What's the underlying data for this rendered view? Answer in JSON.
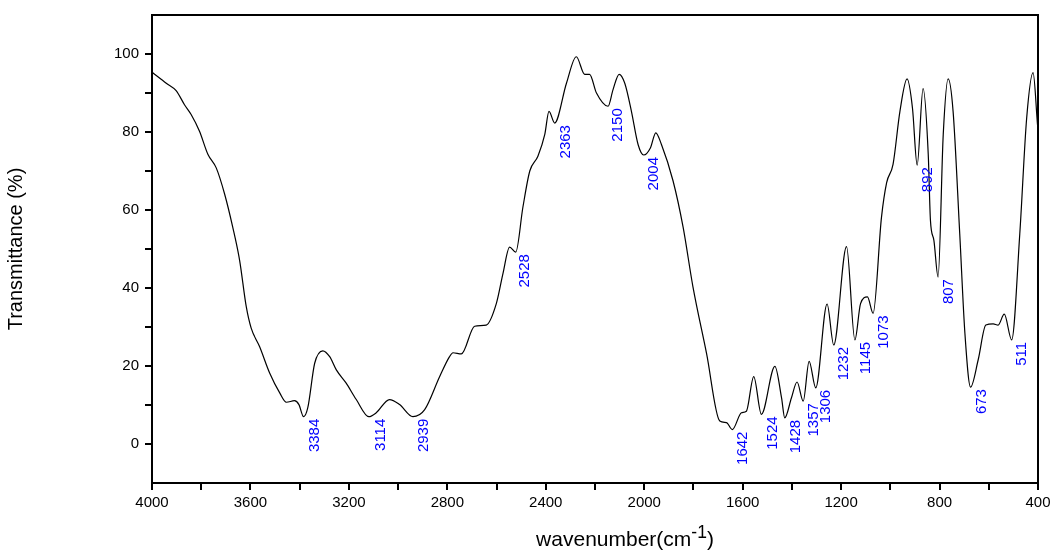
{
  "chart_data": {
    "type": "line",
    "xlabel": "wavenumber(cm$^{-1}$)",
    "ylabel": "Transmittance (%)",
    "x": [
      3997,
      3942,
      3902,
      3868,
      3841,
      3807,
      3773,
      3739,
      3705,
      3672,
      3644,
      3617,
      3597,
      3563,
      3522,
      3481,
      3454,
      3421,
      3403,
      3384,
      3367,
      3339,
      3306,
      3278,
      3251,
      3211,
      3170,
      3119,
      3089,
      3035,
      2994,
      2940,
      2892,
      2831,
      2791,
      2777,
      2743,
      2689,
      2642,
      2601,
      2574,
      2547,
      2522,
      2493,
      2465,
      2432,
      2404,
      2387,
      2364,
      2316,
      2276,
      2242,
      2222,
      2194,
      2147,
      2127,
      2102,
      2079,
      2052,
      2025,
      2002,
      1975,
      1953,
      1930,
      1883,
      1842,
      1802,
      1747,
      1693,
      1666,
      1642,
      1605,
      1585,
      1555,
      1524,
      1469,
      1442,
      1429,
      1402,
      1379,
      1354,
      1330,
      1303,
      1257,
      1230,
      1178,
      1144,
      1121,
      1093,
      1070,
      1036,
      1015,
      989,
      961,
      932,
      910,
      891,
      867,
      846,
      837,
      823,
      806,
      785,
      765,
      745,
      718,
      697,
      674,
      643,
      612,
      582,
      562,
      537,
      507,
      474,
      446,
      420,
      402
    ],
    "series": [
      {
        "color": "#000000",
        "values": [
          95.2,
          92.5,
          90.6,
          87.0,
          84.5,
          80.2,
          74.3,
          70.8,
          64.1,
          55.6,
          47.1,
          35.2,
          29.7,
          25.0,
          18.2,
          13.1,
          10.7,
          11.1,
          10.1,
          7.0,
          9.3,
          20.7,
          23.9,
          22.4,
          19.0,
          15.6,
          11.4,
          7.0,
          8.0,
          11.4,
          10.1,
          7.0,
          8.8,
          17.3,
          22.4,
          23.4,
          23.1,
          30.2,
          30.5,
          36.0,
          43.7,
          50.5,
          49.2,
          60.7,
          70.0,
          73.8,
          79.4,
          85.3,
          82.3,
          92.5,
          99.3,
          94.8,
          94.8,
          90.0,
          86.6,
          90.8,
          94.8,
          92.5,
          85.3,
          76.8,
          74.1,
          75.9,
          79.8,
          76.8,
          67.5,
          55.6,
          40.3,
          23.3,
          5.9,
          5.5,
          3.7,
          8.0,
          8.4,
          17.3,
          7.6,
          19.9,
          11.8,
          6.7,
          11.8,
          15.9,
          11.0,
          21.2,
          14.4,
          35.9,
          25.4,
          50.6,
          26.7,
          36.0,
          37.7,
          33.5,
          58.1,
          67.0,
          71.7,
          85.3,
          93.6,
          86.1,
          71.5,
          91.1,
          74.3,
          57.3,
          52.2,
          42.8,
          79.4,
          93.6,
          85.3,
          53.9,
          28.4,
          14.6,
          21.6,
          30.5,
          30.8,
          30.5,
          33.3,
          26.7,
          53.9,
          83.6,
          95.2,
          81.9
        ]
      }
    ],
    "xlim": [
      4000,
      400
    ],
    "xticks": [
      4000,
      {
        "value": 3800,
        "label": null
      },
      3600,
      {
        "value": 3400,
        "label": null
      },
      3200,
      {
        "value": 3000,
        "label": null
      },
      2800,
      {
        "value": 2600,
        "label": null
      },
      2400,
      {
        "value": 2200,
        "label": null
      },
      2000,
      {
        "value": 1800,
        "label": null
      },
      1600,
      {
        "value": 1400,
        "label": null
      },
      1200,
      {
        "value": 1000,
        "label": null
      },
      800,
      {
        "value": 600,
        "label": null
      },
      400
    ],
    "ylim": [
      -10,
      110
    ],
    "yticks": [
      0,
      {
        "value": 10,
        "label": null
      },
      20,
      {
        "value": 30,
        "label": null
      },
      40,
      {
        "value": 50,
        "label": null
      },
      60,
      {
        "value": 70,
        "label": null
      },
      80,
      {
        "value": 90,
        "label": null
      },
      100
    ],
    "grid": false,
    "marker": "none",
    "line_style": "solid",
    "annotations": [
      {
        "text": "3384",
        "x": 3384,
        "y": 7.0
      },
      {
        "text": "3114",
        "x": 3114,
        "y": 7.0
      },
      {
        "text": "2939",
        "x": 2939,
        "y": 7.0
      },
      {
        "text": "2528",
        "x": 2528,
        "y": 49.2
      },
      {
        "text": "2363",
        "x": 2363,
        "y": 82.3
      },
      {
        "text": "2150",
        "x": 2150,
        "y": 86.6
      },
      {
        "text": "2004",
        "x": 2004,
        "y": 74.1
      },
      {
        "text": "1642",
        "x": 1642,
        "y": 3.7
      },
      {
        "text": "1524",
        "x": 1524,
        "y": 7.6
      },
      {
        "text": "1428",
        "x": 1428,
        "y": 6.7
      },
      {
        "text": "1357",
        "x": 1357,
        "y": 11.0
      },
      {
        "text": "1306",
        "x": 1306,
        "y": 14.4
      },
      {
        "text": "1232",
        "x": 1232,
        "y": 25.4
      },
      {
        "text": "1145",
        "x": 1145,
        "y": 26.7
      },
      {
        "text": "1073",
        "x": 1073,
        "y": 33.5
      },
      {
        "text": "892",
        "x": 892,
        "y": 71.5
      },
      {
        "text": "807",
        "x": 807,
        "y": 42.8
      },
      {
        "text": "673",
        "x": 673,
        "y": 14.6
      },
      {
        "text": "511",
        "x": 511,
        "y": 26.7
      }
    ]
  }
}
